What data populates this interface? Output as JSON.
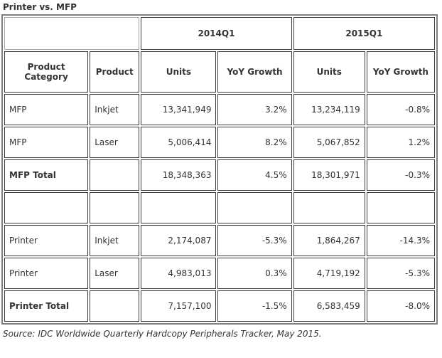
{
  "title": "Printer vs. MFP",
  "source_note": "Source: IDC Worldwide Quarterly Hardcopy Peripherals Tracker, May 2015.",
  "table": {
    "quarters": [
      "2014Q1",
      "2015Q1"
    ],
    "columns": [
      "Product Category",
      "Product",
      "Units",
      "YoY Growth",
      "Units",
      "YoY Growth"
    ],
    "rows": [
      {
        "category": "MFP",
        "product": "Inkjet",
        "units_2014": "13,341,949",
        "yoy_2014": "3.2%",
        "units_2015": "13,234,119",
        "yoy_2015": "-0.8%"
      },
      {
        "category": "MFP",
        "product": "Laser",
        "units_2014": "5,006,414",
        "yoy_2014": "8.2%",
        "units_2015": "5,067,852",
        "yoy_2015": "1.2%"
      },
      {
        "category": "MFP Total",
        "product": "",
        "units_2014": "18,348,363",
        "yoy_2014": "4.5%",
        "units_2015": "18,301,971",
        "yoy_2015": "-0.3%"
      },
      {
        "category": "",
        "product": "",
        "units_2014": "",
        "yoy_2014": "",
        "units_2015": "",
        "yoy_2015": ""
      },
      {
        "category": "Printer",
        "product": "Inkjet",
        "units_2014": "2,174,087",
        "yoy_2014": "-5.3%",
        "units_2015": "1,864,267",
        "yoy_2015": "-14.3%"
      },
      {
        "category": "Printer",
        "product": "Laser",
        "units_2014": "4,983,013",
        "yoy_2014": "0.3%",
        "units_2015": "4,719,192",
        "yoy_2015": "-5.3%"
      },
      {
        "category": "Printer Total",
        "product": "",
        "units_2014": "7,157,100",
        "yoy_2014": "-1.5%",
        "units_2015": "6,583,459",
        "yoy_2015": "-8.0%"
      }
    ]
  },
  "chart_data": {
    "type": "table",
    "title": "Printer vs. MFP",
    "columns": [
      "Product Category",
      "Product",
      "2014Q1 Units",
      "2014Q1 YoY Growth",
      "2015Q1 Units",
      "2015Q1 YoY Growth"
    ],
    "rows": [
      [
        "MFP",
        "Inkjet",
        13341949,
        "3.2%",
        13234119,
        "-0.8%"
      ],
      [
        "MFP",
        "Laser",
        5006414,
        "8.2%",
        5067852,
        "1.2%"
      ],
      [
        "MFP Total",
        "",
        18348363,
        "4.5%",
        18301971,
        "-0.3%"
      ],
      [
        "",
        "",
        null,
        null,
        null,
        null
      ],
      [
        "Printer",
        "Inkjet",
        2174087,
        "-5.3%",
        1864267,
        "-14.3%"
      ],
      [
        "Printer",
        "Laser",
        4983013,
        "0.3%",
        4719192,
        "-5.3%"
      ],
      [
        "Printer Total",
        "",
        7157100,
        "-1.5%",
        6583459,
        "-8.0%"
      ]
    ],
    "source": "IDC Worldwide Quarterly Hardcopy Peripherals Tracker, May 2015"
  },
  "colors": {
    "text": "#333333",
    "cell_border": "#3b3b3b",
    "outer_border": "#7f7f7f",
    "blank_header_border": "#a5a5a5",
    "background": "#ffffff"
  }
}
